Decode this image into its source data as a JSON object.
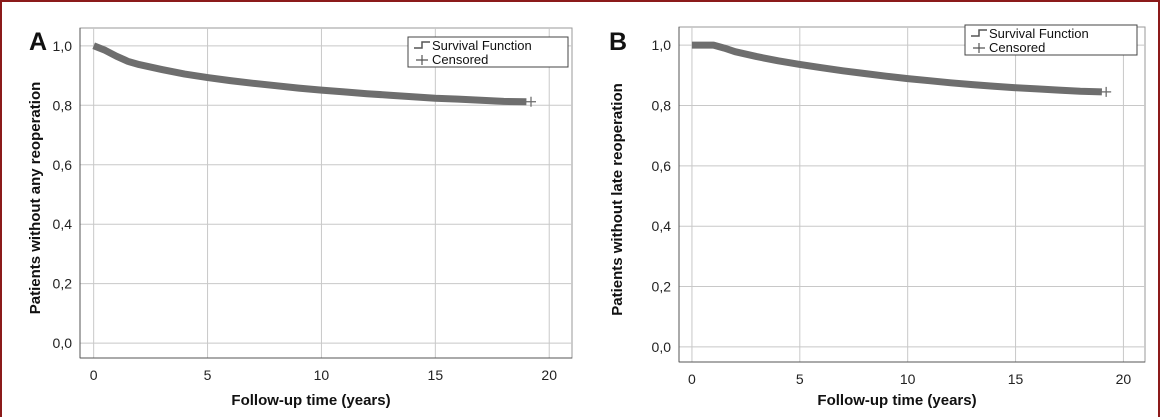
{
  "chart_data": [
    {
      "type": "line",
      "panel_label": "A",
      "xlabel": "Follow-up time (years)",
      "ylabel": "Patients without any reoperation",
      "xlim": [
        -0.6,
        21.0
      ],
      "ylim": [
        -0.05,
        1.06
      ],
      "x_ticks": [
        0,
        5,
        10,
        15,
        20
      ],
      "x_tick_labels": [
        "0",
        "5",
        "10",
        "15",
        "20"
      ],
      "y_ticks": [
        0.0,
        0.2,
        0.4,
        0.6,
        0.8,
        1.0
      ],
      "y_tick_labels": [
        "0,0",
        "0,2",
        "0,4",
        "0,6",
        "0,8",
        "1,0"
      ],
      "grid": true,
      "legend": {
        "position": "top-right",
        "entries": [
          "Survival Function",
          "Censored"
        ]
      },
      "series": [
        {
          "name": "Survival Function",
          "x": [
            0,
            0.5,
            1,
            1.5,
            2,
            3,
            4,
            5,
            6,
            7,
            8,
            9,
            10,
            11,
            12,
            13,
            14,
            15,
            16,
            17,
            18,
            19
          ],
          "y": [
            1.0,
            0.985,
            0.965,
            0.948,
            0.937,
            0.92,
            0.905,
            0.893,
            0.883,
            0.874,
            0.866,
            0.858,
            0.851,
            0.845,
            0.839,
            0.834,
            0.829,
            0.824,
            0.821,
            0.817,
            0.813,
            0.812
          ]
        },
        {
          "name": "Censored",
          "x": [
            19.2
          ],
          "y": [
            0.812
          ]
        }
      ],
      "color": "#6e6e6e"
    },
    {
      "type": "line",
      "panel_label": "B",
      "xlabel": "Follow-up time (years)",
      "ylabel": "Patients without late reoperation",
      "xlim": [
        -0.6,
        21.0
      ],
      "ylim": [
        -0.05,
        1.06
      ],
      "x_ticks": [
        0,
        5,
        10,
        15,
        20
      ],
      "x_tick_labels": [
        "0",
        "5",
        "10",
        "15",
        "20"
      ],
      "y_ticks": [
        0.0,
        0.2,
        0.4,
        0.6,
        0.8,
        1.0
      ],
      "y_tick_labels": [
        "0,0",
        "0,2",
        "0,4",
        "0,6",
        "0,8",
        "1,0"
      ],
      "grid": true,
      "legend": {
        "position": "top-right",
        "entries": [
          "Survival Function",
          "Censored"
        ]
      },
      "series": [
        {
          "name": "Survival Function",
          "x": [
            0,
            0.5,
            1,
            1.5,
            2,
            3,
            4,
            5,
            6,
            7,
            8,
            9,
            10,
            11,
            12,
            13,
            14,
            15,
            16,
            17,
            18,
            19
          ],
          "y": [
            1.0,
            1.0,
            1.0,
            0.99,
            0.978,
            0.962,
            0.948,
            0.936,
            0.925,
            0.915,
            0.906,
            0.897,
            0.889,
            0.882,
            0.875,
            0.869,
            0.864,
            0.859,
            0.855,
            0.851,
            0.847,
            0.845
          ]
        },
        {
          "name": "Censored",
          "x": [
            19.2
          ],
          "y": [
            0.845
          ]
        }
      ],
      "color": "#6e6e6e"
    }
  ]
}
